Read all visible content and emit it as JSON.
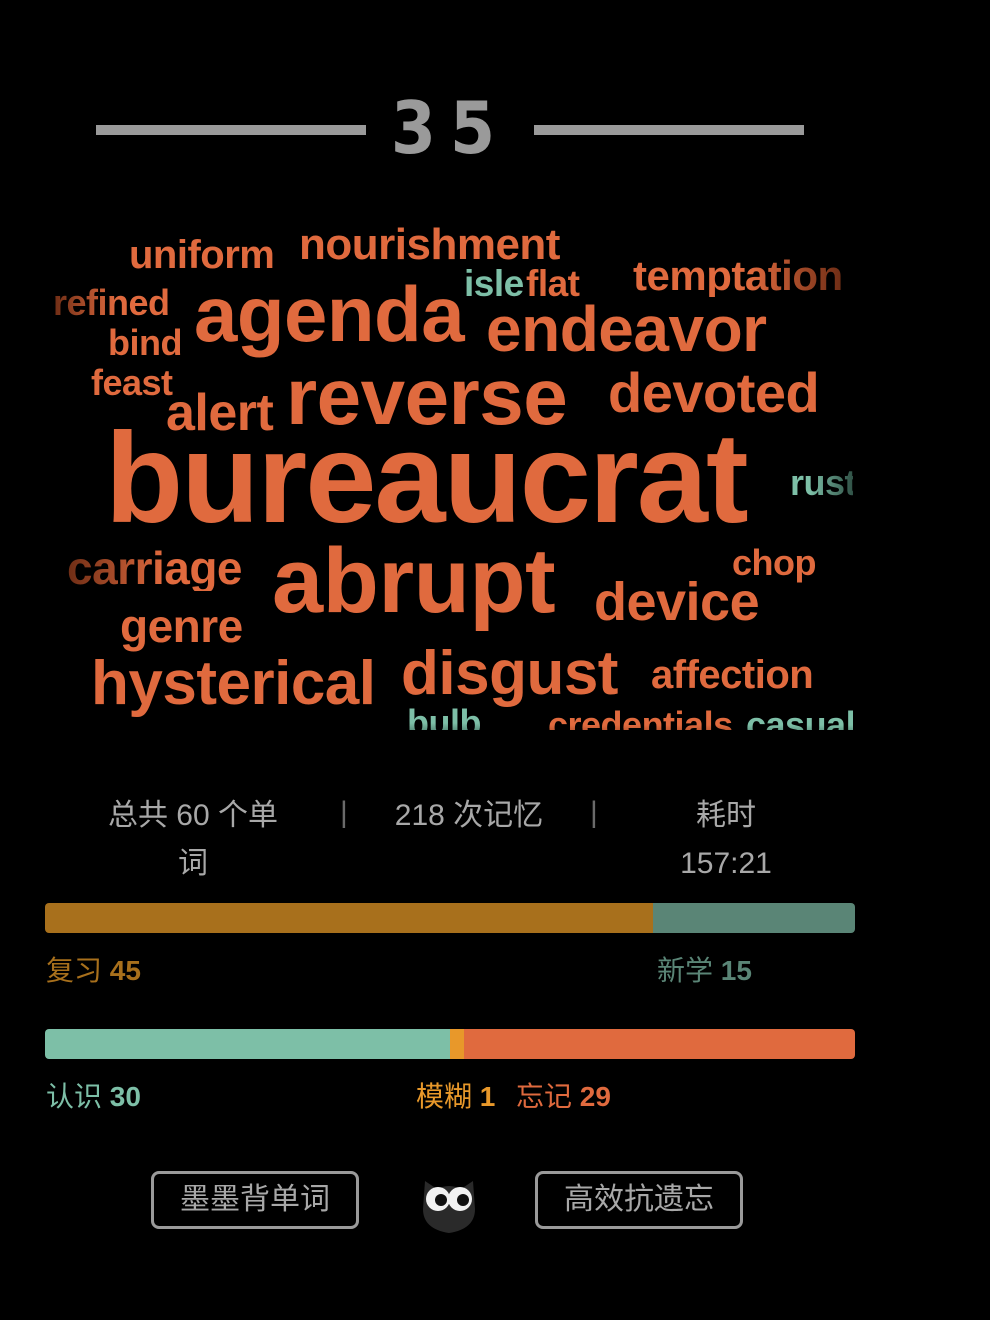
{
  "header": {
    "day_number": "35"
  },
  "word_cloud": [
    {
      "text": "uniform"
    },
    {
      "text": "nourishment"
    },
    {
      "text": "isle"
    },
    {
      "text": "flat"
    },
    {
      "text": "temptation"
    },
    {
      "text": "refined"
    },
    {
      "text": "agenda"
    },
    {
      "text": "endeavor"
    },
    {
      "text": "bind"
    },
    {
      "text": "feast"
    },
    {
      "text": "reverse"
    },
    {
      "text": "devoted"
    },
    {
      "text": "alert"
    },
    {
      "text": "bureaucrat"
    },
    {
      "text": "rust"
    },
    {
      "text": "carriage"
    },
    {
      "text": "abrupt"
    },
    {
      "text": "chop"
    },
    {
      "text": "device"
    },
    {
      "text": "genre"
    },
    {
      "text": "hysterical"
    },
    {
      "text": "disgust"
    },
    {
      "text": "affection"
    },
    {
      "text": "bulb"
    },
    {
      "text": "credentials"
    },
    {
      "text": "casual"
    }
  ],
  "stats": {
    "total_words": "总共 60 个单词",
    "memory_count": "218 次记忆",
    "time_label": "耗时",
    "time_value": "157:21"
  },
  "progress_review": {
    "review_label": "复习",
    "review_value": "45",
    "new_label": "新学",
    "new_value": "15",
    "review_color": "#a8701c",
    "new_color": "#5a8576"
  },
  "progress_recall": {
    "known_label": "认识",
    "known_value": "30",
    "fuzzy_label": "模糊",
    "fuzzy_value": "1",
    "forgot_label": "忘记",
    "forgot_value": "29",
    "known_color": "#7dbfa7",
    "fuzzy_color": "#e8982a",
    "forgot_color": "#e06a3e"
  },
  "footer": {
    "left_button": "墨墨背单词",
    "right_button": "高效抗遗忘",
    "logo_icon": "owl-icon"
  }
}
